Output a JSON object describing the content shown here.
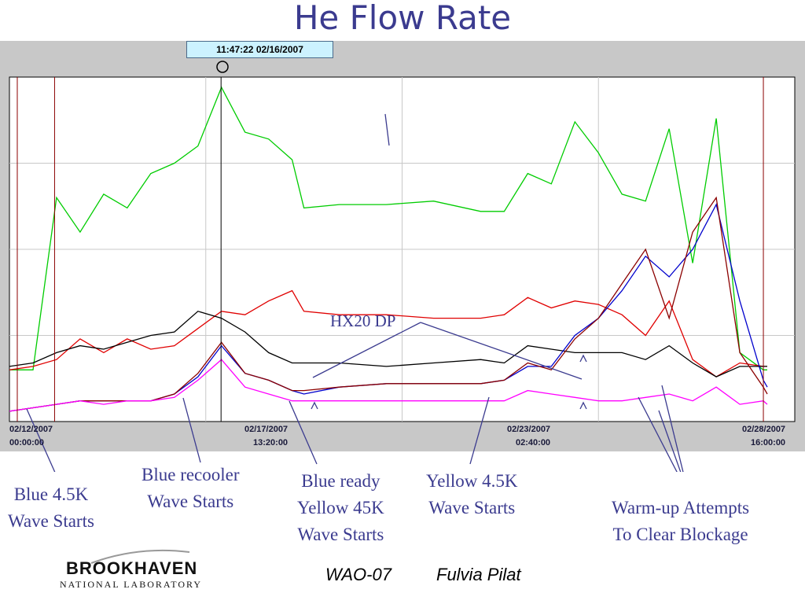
{
  "title": "He Flow Rate",
  "cursor_label": "11:47:22 02/16/2007",
  "chart_data": {
    "type": "line",
    "title": "He Flow Rate",
    "x_tick_labels": [
      {
        "date": "02/12/2007",
        "time": "00:00:00"
      },
      {
        "date": "02/17/2007",
        "time": "13:20:00"
      },
      {
        "date": "02/23/2007",
        "time": "02:40:00"
      },
      {
        "date": "02/28/2007",
        "time": "16:00:00"
      }
    ],
    "x_range": [
      "02/12/2007 00:00:00",
      "02/28/2007 16:00:00"
    ],
    "grid": true,
    "series": [
      {
        "color": "#00cc00",
        "points": [
          [
            "02/12/2007 00:00",
            0.15
          ],
          [
            "02/12/2007 12:00",
            0.15
          ],
          [
            "02/13/2007 00:00",
            0.65
          ],
          [
            "02/13/2007 12:00",
            0.55
          ],
          [
            "02/14/2007 00:00",
            0.66
          ],
          [
            "02/14/2007 12:00",
            0.62
          ],
          [
            "02/15/2007 00:00",
            0.72
          ],
          [
            "02/15/2007 12:00",
            0.75
          ],
          [
            "02/16/2007 00:00",
            0.8
          ],
          [
            "02/16/2007 12:00",
            0.97
          ],
          [
            "02/17/2007 00:00",
            0.84
          ],
          [
            "02/17/2007 12:00",
            0.82
          ],
          [
            "02/18/2007 00:00",
            0.76
          ],
          [
            "02/18/2007 06:00",
            0.62
          ],
          [
            "02/19/2007 00:00",
            0.63
          ],
          [
            "02/20/2007 00:00",
            0.63
          ],
          [
            "02/21/2007 00:00",
            0.64
          ],
          [
            "02/22/2007 00:00",
            0.61
          ],
          [
            "02/22/2007 12:00",
            0.61
          ],
          [
            "02/23/2007 00:00",
            0.72
          ],
          [
            "02/23/2007 12:00",
            0.69
          ],
          [
            "02/24/2007 00:00",
            0.87
          ],
          [
            "02/24/2007 12:00",
            0.78
          ],
          [
            "02/25/2007 00:00",
            0.66
          ],
          [
            "02/25/2007 12:00",
            0.64
          ],
          [
            "02/26/2007 00:00",
            0.85
          ],
          [
            "02/26/2007 12:00",
            0.46
          ],
          [
            "02/27/2007 00:00",
            0.88
          ],
          [
            "02/27/2007 12:00",
            0.2
          ],
          [
            "02/28/2007 00:00",
            0.15
          ],
          [
            "02/28/2007 02:00",
            0.15
          ]
        ]
      },
      {
        "color": "#e00000",
        "points": [
          [
            "02/12/2007 00:00",
            0.15
          ],
          [
            "02/12/2007 12:00",
            0.16
          ],
          [
            "02/13/2007 00:00",
            0.18
          ],
          [
            "02/13/2007 12:00",
            0.24
          ],
          [
            "02/14/2007 00:00",
            0.2
          ],
          [
            "02/14/2007 12:00",
            0.24
          ],
          [
            "02/15/2007 00:00",
            0.21
          ],
          [
            "02/15/2007 12:00",
            0.22
          ],
          [
            "02/16/2007 00:00",
            0.27
          ],
          [
            "02/16/2007 12:00",
            0.32
          ],
          [
            "02/17/2007 00:00",
            0.31
          ],
          [
            "02/17/2007 12:00",
            0.35
          ],
          [
            "02/18/2007 00:00",
            0.38
          ],
          [
            "02/18/2007 06:00",
            0.32
          ],
          [
            "02/19/2007 00:00",
            0.31
          ],
          [
            "02/20/2007 00:00",
            0.31
          ],
          [
            "02/21/2007 00:00",
            0.3
          ],
          [
            "02/22/2007 00:00",
            0.3
          ],
          [
            "02/22/2007 12:00",
            0.31
          ],
          [
            "02/23/2007 00:00",
            0.36
          ],
          [
            "02/23/2007 12:00",
            0.33
          ],
          [
            "02/24/2007 00:00",
            0.35
          ],
          [
            "02/24/2007 12:00",
            0.34
          ],
          [
            "02/25/2007 00:00",
            0.31
          ],
          [
            "02/25/2007 12:00",
            0.25
          ],
          [
            "02/26/2007 00:00",
            0.35
          ],
          [
            "02/26/2007 12:00",
            0.18
          ],
          [
            "02/27/2007 00:00",
            0.13
          ],
          [
            "02/27/2007 12:00",
            0.17
          ],
          [
            "02/28/2007 00:00",
            0.16
          ],
          [
            "02/28/2007 02:00",
            0.16
          ]
        ]
      },
      {
        "color": "#000000",
        "points": [
          [
            "02/12/2007 00:00",
            0.16
          ],
          [
            "02/12/2007 12:00",
            0.17
          ],
          [
            "02/13/2007 00:00",
            0.2
          ],
          [
            "02/13/2007 12:00",
            0.22
          ],
          [
            "02/14/2007 00:00",
            0.21
          ],
          [
            "02/14/2007 12:00",
            0.23
          ],
          [
            "02/15/2007 00:00",
            0.25
          ],
          [
            "02/15/2007 12:00",
            0.26
          ],
          [
            "02/16/2007 00:00",
            0.32
          ],
          [
            "02/16/2007 12:00",
            0.3
          ],
          [
            "02/17/2007 00:00",
            0.26
          ],
          [
            "02/17/2007 12:00",
            0.2
          ],
          [
            "02/18/2007 00:00",
            0.17
          ],
          [
            "02/18/2007 06:00",
            0.17
          ],
          [
            "02/19/2007 00:00",
            0.17
          ],
          [
            "02/20/2007 00:00",
            0.16
          ],
          [
            "02/21/2007 00:00",
            0.17
          ],
          [
            "02/22/2007 00:00",
            0.18
          ],
          [
            "02/22/2007 12:00",
            0.17
          ],
          [
            "02/23/2007 00:00",
            0.22
          ],
          [
            "02/23/2007 12:00",
            0.21
          ],
          [
            "02/24/2007 00:00",
            0.2
          ],
          [
            "02/24/2007 12:00",
            0.2
          ],
          [
            "02/25/2007 00:00",
            0.2
          ],
          [
            "02/25/2007 12:00",
            0.18
          ],
          [
            "02/26/2007 00:00",
            0.22
          ],
          [
            "02/26/2007 12:00",
            0.17
          ],
          [
            "02/27/2007 00:00",
            0.13
          ],
          [
            "02/27/2007 12:00",
            0.16
          ],
          [
            "02/28/2007 00:00",
            0.16
          ],
          [
            "02/28/2007 02:00",
            0.16
          ]
        ]
      },
      {
        "color": "#0000cc",
        "points": [
          [
            "02/12/2007 00:00",
            0.03
          ],
          [
            "02/12/2007 12:00",
            0.04
          ],
          [
            "02/13/2007 00:00",
            0.05
          ],
          [
            "02/13/2007 12:00",
            0.06
          ],
          [
            "02/14/2007 00:00",
            0.06
          ],
          [
            "02/14/2007 12:00",
            0.06
          ],
          [
            "02/15/2007 00:00",
            0.06
          ],
          [
            "02/15/2007 12:00",
            0.08
          ],
          [
            "02/16/2007 00:00",
            0.13
          ],
          [
            "02/16/2007 12:00",
            0.22
          ],
          [
            "02/17/2007 00:00",
            0.14
          ],
          [
            "02/17/2007 12:00",
            0.12
          ],
          [
            "02/18/2007 00:00",
            0.09
          ],
          [
            "02/18/2007 06:00",
            0.08
          ],
          [
            "02/19/2007 00:00",
            0.1
          ],
          [
            "02/20/2007 00:00",
            0.11
          ],
          [
            "02/21/2007 00:00",
            0.11
          ],
          [
            "02/22/2007 00:00",
            0.11
          ],
          [
            "02/22/2007 12:00",
            0.12
          ],
          [
            "02/23/2007 00:00",
            0.16
          ],
          [
            "02/23/2007 12:00",
            0.16
          ],
          [
            "02/24/2007 00:00",
            0.25
          ],
          [
            "02/24/2007 12:00",
            0.3
          ],
          [
            "02/25/2007 00:00",
            0.38
          ],
          [
            "02/25/2007 12:00",
            0.48
          ],
          [
            "02/26/2007 00:00",
            0.42
          ],
          [
            "02/26/2007 12:00",
            0.5
          ],
          [
            "02/27/2007 00:00",
            0.63
          ],
          [
            "02/27/2007 12:00",
            0.35
          ],
          [
            "02/28/2007 00:00",
            0.12
          ],
          [
            "02/28/2007 02:00",
            0.1
          ]
        ]
      },
      {
        "color": "#8b0000",
        "points": [
          [
            "02/12/2007 00:00",
            0.03
          ],
          [
            "02/12/2007 12:00",
            0.04
          ],
          [
            "02/13/2007 00:00",
            0.05
          ],
          [
            "02/13/2007 12:00",
            0.06
          ],
          [
            "02/14/2007 00:00",
            0.06
          ],
          [
            "02/14/2007 12:00",
            0.06
          ],
          [
            "02/15/2007 00:00",
            0.06
          ],
          [
            "02/15/2007 12:00",
            0.08
          ],
          [
            "02/16/2007 00:00",
            0.14
          ],
          [
            "02/16/2007 12:00",
            0.23
          ],
          [
            "02/17/2007 00:00",
            0.14
          ],
          [
            "02/17/2007 12:00",
            0.12
          ],
          [
            "02/18/2007 00:00",
            0.09
          ],
          [
            "02/18/2007 06:00",
            0.09
          ],
          [
            "02/19/2007 00:00",
            0.1
          ],
          [
            "02/20/2007 00:00",
            0.11
          ],
          [
            "02/21/2007 00:00",
            0.11
          ],
          [
            "02/22/2007 00:00",
            0.11
          ],
          [
            "02/22/2007 12:00",
            0.12
          ],
          [
            "02/23/2007 00:00",
            0.17
          ],
          [
            "02/23/2007 12:00",
            0.15
          ],
          [
            "02/24/2007 00:00",
            0.24
          ],
          [
            "02/24/2007 12:00",
            0.3
          ],
          [
            "02/25/2007 00:00",
            0.4
          ],
          [
            "02/25/2007 12:00",
            0.5
          ],
          [
            "02/26/2007 00:00",
            0.3
          ],
          [
            "02/26/2007 12:00",
            0.55
          ],
          [
            "02/27/2007 00:00",
            0.65
          ],
          [
            "02/27/2007 12:00",
            0.2
          ],
          [
            "02/28/2007 00:00",
            0.1
          ],
          [
            "02/28/2007 02:00",
            0.08
          ]
        ]
      },
      {
        "color": "#ff00ff",
        "points": [
          [
            "02/12/2007 00:00",
            0.03
          ],
          [
            "02/12/2007 12:00",
            0.04
          ],
          [
            "02/13/2007 00:00",
            0.05
          ],
          [
            "02/13/2007 12:00",
            0.06
          ],
          [
            "02/14/2007 00:00",
            0.05
          ],
          [
            "02/14/2007 12:00",
            0.06
          ],
          [
            "02/15/2007 00:00",
            0.06
          ],
          [
            "02/15/2007 12:00",
            0.07
          ],
          [
            "02/16/2007 00:00",
            0.12
          ],
          [
            "02/16/2007 12:00",
            0.18
          ],
          [
            "02/17/2007 00:00",
            0.1
          ],
          [
            "02/17/2007 12:00",
            0.08
          ],
          [
            "02/18/2007 00:00",
            0.06
          ],
          [
            "02/18/2007 06:00",
            0.06
          ],
          [
            "02/19/2007 00:00",
            0.06
          ],
          [
            "02/20/2007 00:00",
            0.06
          ],
          [
            "02/21/2007 00:00",
            0.06
          ],
          [
            "02/22/2007 00:00",
            0.06
          ],
          [
            "02/22/2007 12:00",
            0.06
          ],
          [
            "02/23/2007 00:00",
            0.09
          ],
          [
            "02/23/2007 12:00",
            0.08
          ],
          [
            "02/24/2007 00:00",
            0.07
          ],
          [
            "02/24/2007 12:00",
            0.06
          ],
          [
            "02/25/2007 00:00",
            0.06
          ],
          [
            "02/25/2007 12:00",
            0.07
          ],
          [
            "02/26/2007 00:00",
            0.08
          ],
          [
            "02/26/2007 12:00",
            0.06
          ],
          [
            "02/27/2007 00:00",
            0.1
          ],
          [
            "02/27/2007 12:00",
            0.05
          ],
          [
            "02/28/2007 00:00",
            0.06
          ],
          [
            "02/28/2007 02:00",
            0.05
          ]
        ]
      }
    ],
    "vertical_markers": [
      {
        "at": "02/12/2007 04:00",
        "color": "#8b0000"
      },
      {
        "at": "02/12/2007 23:00",
        "color": "#8b0000"
      },
      {
        "at": "02/16/2007 11:47",
        "color": "#000000"
      },
      {
        "at": "02/28/2007 00:00",
        "color": "#8b0000"
      }
    ],
    "annotations": [
      "HX20 DP",
      "Blue 4.5K\nWave Starts",
      "Blue recooler\nWave Starts",
      "Blue ready\nYellow 45K\nWave Starts",
      "Yellow 4.5K\nWave Starts",
      "Warm-up Attempts\nTo Clear Blockage"
    ]
  },
  "annotations": {
    "hx20": "HX20 DP",
    "blue45": [
      "Blue 4.5K",
      "Wave Starts"
    ],
    "recooler": [
      "Blue recooler",
      "Wave Starts"
    ],
    "blueready": [
      "Blue ready",
      "Yellow 45K",
      "Wave Starts"
    ],
    "yellow45": [
      "Yellow 4.5K",
      "Wave Starts"
    ],
    "warmup": [
      "Warm-up Attempts",
      "To Clear Blockage"
    ]
  },
  "footer": {
    "event": "WAO-07",
    "author": "Fulvia Pilat"
  },
  "logo": {
    "main": "BROOKHAVEN",
    "sub": "NATIONAL LABORATORY"
  },
  "colors": {
    "title": "#3b3b8f",
    "panel": "#c8c8c8",
    "cursor_box": "#ccf2ff"
  }
}
